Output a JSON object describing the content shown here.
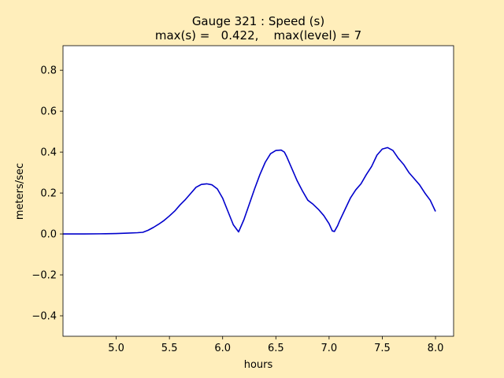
{
  "chart_data": {
    "type": "line",
    "title": "Gauge 321 : Speed (s)",
    "subtitle": "max(s) =   0.422,    max(level) = 7",
    "xlabel": "hours",
    "ylabel": "meters/sec",
    "xlim": [
      4.5,
      8.17
    ],
    "ylim": [
      -0.5,
      0.92
    ],
    "xticks": [
      5.0,
      5.5,
      6.0,
      6.5,
      7.0,
      7.5,
      8.0
    ],
    "xtick_labels": [
      "5.0",
      "5.5",
      "6.0",
      "6.5",
      "7.0",
      "7.5",
      "8.0"
    ],
    "yticks": [
      -0.4,
      -0.2,
      0.0,
      0.2,
      0.4,
      0.6,
      0.8
    ],
    "ytick_labels": [
      "−0.4",
      "−0.2",
      "0.0",
      "0.2",
      "0.4",
      "0.6",
      "0.8"
    ],
    "grid": false,
    "colors": {
      "background": "#ffeebb",
      "plot_area": "#ffffff",
      "line": "#0000cc"
    },
    "series": [
      {
        "x": [
          4.5,
          4.7,
          4.9,
          5.0,
          5.1,
          5.2,
          5.25,
          5.3,
          5.35,
          5.4,
          5.45,
          5.5,
          5.55,
          5.6,
          5.65,
          5.7,
          5.75,
          5.8,
          5.85,
          5.9,
          5.95,
          6.0,
          6.05,
          6.1,
          6.15,
          6.2,
          6.25,
          6.3,
          6.35,
          6.4,
          6.45,
          6.5,
          6.55,
          6.58,
          6.6,
          6.65,
          6.7,
          6.75,
          6.8,
          6.85,
          6.9,
          6.95,
          7.0,
          7.03,
          7.05,
          7.08,
          7.1,
          7.15,
          7.2,
          7.25,
          7.3,
          7.35,
          7.4,
          7.45,
          7.5,
          7.55,
          7.6,
          7.65,
          7.7,
          7.75,
          7.8,
          7.85,
          7.9,
          7.95,
          8.0
        ],
        "y": [
          0.0,
          0.0,
          0.001,
          0.002,
          0.004,
          0.006,
          0.008,
          0.018,
          0.032,
          0.048,
          0.066,
          0.088,
          0.112,
          0.142,
          0.168,
          0.198,
          0.228,
          0.242,
          0.245,
          0.24,
          0.22,
          0.175,
          0.11,
          0.045,
          0.01,
          0.07,
          0.145,
          0.22,
          0.29,
          0.35,
          0.392,
          0.408,
          0.41,
          0.4,
          0.38,
          0.32,
          0.26,
          0.21,
          0.165,
          0.145,
          0.12,
          0.09,
          0.05,
          0.015,
          0.012,
          0.04,
          0.065,
          0.12,
          0.175,
          0.215,
          0.245,
          0.29,
          0.33,
          0.385,
          0.415,
          0.422,
          0.408,
          0.37,
          0.34,
          0.3,
          0.27,
          0.24,
          0.2,
          0.165,
          0.11
        ]
      }
    ]
  }
}
